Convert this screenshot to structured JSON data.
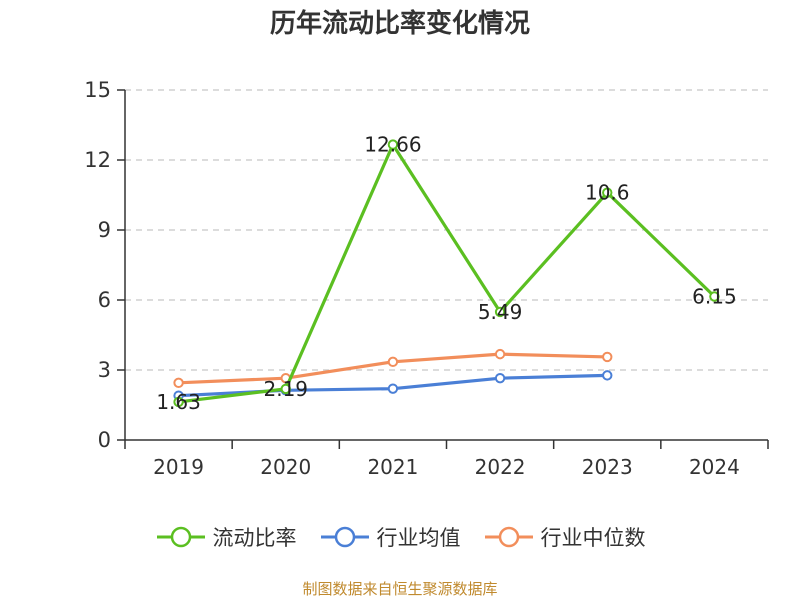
{
  "chart_data": {
    "type": "line",
    "title": "历年流动比率变化情况",
    "categories": [
      "2019",
      "2020",
      "2021",
      "2022",
      "2023",
      "2024"
    ],
    "ylim": [
      0,
      15
    ],
    "yticks": [
      "0",
      "3",
      "6",
      "9",
      "12",
      "15"
    ],
    "grid": true,
    "legend_position": "bottom",
    "series": [
      {
        "name": "流动比率",
        "color": "#5bbf21",
        "values": [
          1.63,
          2.19,
          12.66,
          5.49,
          10.6,
          6.15
        ],
        "labels": [
          "1.63",
          "2.19",
          "12.66",
          "5.49",
          "10.6",
          "6.15"
        ]
      },
      {
        "name": "行业均值",
        "color": "#4a7fd6",
        "values": [
          1.9,
          2.13,
          2.2,
          2.65,
          2.77,
          null
        ]
      },
      {
        "name": "行业中位数",
        "color": "#f28e5b",
        "values": [
          2.45,
          2.65,
          3.35,
          3.68,
          3.56,
          null
        ]
      }
    ]
  },
  "source_text": "制图数据来自恒生聚源数据库"
}
